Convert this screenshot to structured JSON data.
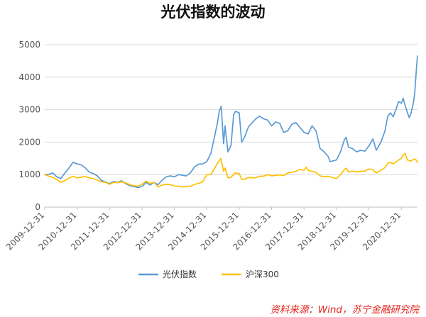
{
  "chart_data": {
    "type": "line",
    "title": "光伏指数的波动",
    "ylim": [
      0,
      5000
    ],
    "yticks": [
      0,
      1000,
      2000,
      3000,
      4000,
      5000
    ],
    "xlim": [
      "2009-12-31",
      "2021-07-01"
    ],
    "xticks": [
      "2009-12-31",
      "2010-12-31",
      "2011-12-31",
      "2012-12-31",
      "2013-12-31",
      "2014-12-31",
      "2015-12-31",
      "2016-12-31",
      "2017-12-31",
      "2018-12-31",
      "2019-12-31",
      "2020-12-31"
    ],
    "grid": "horizontal",
    "legend": "bottom",
    "series": [
      {
        "name": "光伏指数",
        "color": "#5b9bd5",
        "points": [
          [
            "2009-12-31",
            1000
          ],
          [
            "2010-02-15",
            1010
          ],
          [
            "2010-03-31",
            1050
          ],
          [
            "2010-05-15",
            930
          ],
          [
            "2010-06-30",
            880
          ],
          [
            "2010-08-15",
            1050
          ],
          [
            "2010-09-30",
            1200
          ],
          [
            "2010-11-15",
            1380
          ],
          [
            "2010-12-31",
            1330
          ],
          [
            "2011-02-15",
            1300
          ],
          [
            "2011-03-31",
            1210
          ],
          [
            "2011-05-15",
            1080
          ],
          [
            "2011-06-30",
            1030
          ],
          [
            "2011-08-15",
            960
          ],
          [
            "2011-09-30",
            820
          ],
          [
            "2011-11-15",
            770
          ],
          [
            "2011-12-31",
            720
          ],
          [
            "2012-02-15",
            790
          ],
          [
            "2012-03-31",
            760
          ],
          [
            "2012-05-15",
            810
          ],
          [
            "2012-06-30",
            720
          ],
          [
            "2012-08-15",
            660
          ],
          [
            "2012-09-30",
            630
          ],
          [
            "2012-11-15",
            600
          ],
          [
            "2012-12-31",
            630
          ],
          [
            "2013-02-15",
            760
          ],
          [
            "2013-03-31",
            680
          ],
          [
            "2013-05-15",
            760
          ],
          [
            "2013-06-30",
            690
          ],
          [
            "2013-08-15",
            830
          ],
          [
            "2013-09-30",
            930
          ],
          [
            "2013-11-15",
            960
          ],
          [
            "2013-12-31",
            930
          ],
          [
            "2014-02-15",
            1000
          ],
          [
            "2014-03-31",
            980
          ],
          [
            "2014-05-15",
            960
          ],
          [
            "2014-06-30",
            1060
          ],
          [
            "2014-08-15",
            1240
          ],
          [
            "2014-09-30",
            1320
          ],
          [
            "2014-11-15",
            1330
          ],
          [
            "2014-12-31",
            1400
          ],
          [
            "2015-02-15",
            1650
          ],
          [
            "2015-03-31",
            2200
          ],
          [
            "2015-04-30",
            2600
          ],
          [
            "2015-05-20",
            2950
          ],
          [
            "2015-06-12",
            3100
          ],
          [
            "2015-07-08",
            1950
          ],
          [
            "2015-07-25",
            2500
          ],
          [
            "2015-08-26",
            1700
          ],
          [
            "2015-09-30",
            1900
          ],
          [
            "2015-10-30",
            2850
          ],
          [
            "2015-11-20",
            2950
          ],
          [
            "2015-12-31",
            2900
          ],
          [
            "2016-01-28",
            2000
          ],
          [
            "2016-02-29",
            2150
          ],
          [
            "2016-04-15",
            2480
          ],
          [
            "2016-06-30",
            2700
          ],
          [
            "2016-08-15",
            2800
          ],
          [
            "2016-09-30",
            2720
          ],
          [
            "2016-11-15",
            2680
          ],
          [
            "2016-12-31",
            2500
          ],
          [
            "2017-02-15",
            2620
          ],
          [
            "2017-03-31",
            2580
          ],
          [
            "2017-05-15",
            2300
          ],
          [
            "2017-06-30",
            2350
          ],
          [
            "2017-08-15",
            2550
          ],
          [
            "2017-09-30",
            2600
          ],
          [
            "2017-11-15",
            2450
          ],
          [
            "2017-12-31",
            2300
          ],
          [
            "2018-02-15",
            2250
          ],
          [
            "2018-03-31",
            2500
          ],
          [
            "2018-05-15",
            2350
          ],
          [
            "2018-06-30",
            1800
          ],
          [
            "2018-08-15",
            1700
          ],
          [
            "2018-09-30",
            1550
          ],
          [
            "2018-10-20",
            1400
          ],
          [
            "2018-12-31",
            1450
          ],
          [
            "2019-02-15",
            1700
          ],
          [
            "2019-03-31",
            2080
          ],
          [
            "2019-04-20",
            2150
          ],
          [
            "2019-05-15",
            1850
          ],
          [
            "2019-06-30",
            1800
          ],
          [
            "2019-08-15",
            1700
          ],
          [
            "2019-09-30",
            1750
          ],
          [
            "2019-11-15",
            1720
          ],
          [
            "2019-12-31",
            1880
          ],
          [
            "2020-02-15",
            2100
          ],
          [
            "2020-03-23",
            1750
          ],
          [
            "2020-05-15",
            2000
          ],
          [
            "2020-06-30",
            2350
          ],
          [
            "2020-07-31",
            2800
          ],
          [
            "2020-08-31",
            2900
          ],
          [
            "2020-09-30",
            2780
          ],
          [
            "2020-10-31",
            3000
          ],
          [
            "2020-11-30",
            3250
          ],
          [
            "2020-12-31",
            3200
          ],
          [
            "2021-01-20",
            3350
          ],
          [
            "2021-02-15",
            3100
          ],
          [
            "2021-03-10",
            2900
          ],
          [
            "2021-03-31",
            2750
          ],
          [
            "2021-04-20",
            2900
          ],
          [
            "2021-05-15",
            3200
          ],
          [
            "2021-05-31",
            3500
          ],
          [
            "2021-06-15",
            4100
          ],
          [
            "2021-06-30",
            4650
          ]
        ]
      },
      {
        "name": "沪深300",
        "color": "#ffc000",
        "points": [
          [
            "2009-12-31",
            1000
          ],
          [
            "2010-02-15",
            950
          ],
          [
            "2010-03-31",
            920
          ],
          [
            "2010-05-15",
            850
          ],
          [
            "2010-06-30",
            760
          ],
          [
            "2010-08-15",
            820
          ],
          [
            "2010-09-30",
            890
          ],
          [
            "2010-11-15",
            950
          ],
          [
            "2010-12-31",
            900
          ],
          [
            "2011-02-15",
            920
          ],
          [
            "2011-03-31",
            940
          ],
          [
            "2011-05-15",
            900
          ],
          [
            "2011-06-30",
            880
          ],
          [
            "2011-08-15",
            830
          ],
          [
            "2011-09-30",
            780
          ],
          [
            "2011-11-15",
            760
          ],
          [
            "2011-12-31",
            700
          ],
          [
            "2012-02-15",
            760
          ],
          [
            "2012-03-31",
            750
          ],
          [
            "2012-05-15",
            780
          ],
          [
            "2012-06-30",
            740
          ],
          [
            "2012-08-15",
            690
          ],
          [
            "2012-09-30",
            660
          ],
          [
            "2012-11-15",
            640
          ],
          [
            "2012-12-31",
            700
          ],
          [
            "2013-02-15",
            800
          ],
          [
            "2013-03-31",
            730
          ],
          [
            "2013-05-15",
            760
          ],
          [
            "2013-06-30",
            620
          ],
          [
            "2013-08-15",
            680
          ],
          [
            "2013-09-30",
            700
          ],
          [
            "2013-11-15",
            690
          ],
          [
            "2013-12-31",
            650
          ],
          [
            "2014-02-15",
            640
          ],
          [
            "2014-03-31",
            620
          ],
          [
            "2014-05-15",
            630
          ],
          [
            "2014-06-30",
            640
          ],
          [
            "2014-08-15",
            700
          ],
          [
            "2014-09-30",
            730
          ],
          [
            "2014-11-15",
            780
          ],
          [
            "2014-12-31",
            1000
          ],
          [
            "2015-02-15",
            1000
          ],
          [
            "2015-03-31",
            1200
          ],
          [
            "2015-04-30",
            1350
          ],
          [
            "2015-06-08",
            1500
          ],
          [
            "2015-07-08",
            1100
          ],
          [
            "2015-07-25",
            1200
          ],
          [
            "2015-08-26",
            900
          ],
          [
            "2015-09-30",
            920
          ],
          [
            "2015-11-15",
            1050
          ],
          [
            "2015-12-31",
            1030
          ],
          [
            "2016-01-28",
            850
          ],
          [
            "2016-02-29",
            860
          ],
          [
            "2016-04-15",
            910
          ],
          [
            "2016-06-30",
            900
          ],
          [
            "2016-08-15",
            950
          ],
          [
            "2016-09-30",
            950
          ],
          [
            "2016-11-15",
            1000
          ],
          [
            "2016-12-31",
            960
          ],
          [
            "2017-02-15",
            980
          ],
          [
            "2017-03-31",
            990
          ],
          [
            "2017-05-15",
            970
          ],
          [
            "2017-06-30",
            1050
          ],
          [
            "2017-08-15",
            1070
          ],
          [
            "2017-09-30",
            1100
          ],
          [
            "2017-11-15",
            1160
          ],
          [
            "2017-12-31",
            1130
          ],
          [
            "2018-01-24",
            1230
          ],
          [
            "2018-02-15",
            1130
          ],
          [
            "2018-03-31",
            1100
          ],
          [
            "2018-05-15",
            1070
          ],
          [
            "2018-06-30",
            960
          ],
          [
            "2018-08-15",
            930
          ],
          [
            "2018-09-30",
            950
          ],
          [
            "2018-11-15",
            910
          ],
          [
            "2018-12-31",
            880
          ],
          [
            "2019-02-15",
            1000
          ],
          [
            "2019-03-31",
            1150
          ],
          [
            "2019-04-20",
            1200
          ],
          [
            "2019-05-15",
            1080
          ],
          [
            "2019-06-30",
            1110
          ],
          [
            "2019-08-15",
            1080
          ],
          [
            "2019-09-30",
            1100
          ],
          [
            "2019-11-15",
            1110
          ],
          [
            "2019-12-31",
            1170
          ],
          [
            "2020-02-15",
            1150
          ],
          [
            "2020-03-23",
            1050
          ],
          [
            "2020-05-15",
            1130
          ],
          [
            "2020-06-30",
            1220
          ],
          [
            "2020-07-31",
            1350
          ],
          [
            "2020-08-31",
            1380
          ],
          [
            "2020-09-30",
            1330
          ],
          [
            "2020-10-31",
            1390
          ],
          [
            "2020-11-30",
            1450
          ],
          [
            "2020-12-31",
            1500
          ],
          [
            "2021-01-20",
            1600
          ],
          [
            "2021-02-10",
            1650
          ],
          [
            "2021-03-10",
            1450
          ],
          [
            "2021-03-31",
            1430
          ],
          [
            "2021-04-20",
            1420
          ],
          [
            "2021-05-15",
            1470
          ],
          [
            "2021-05-31",
            1480
          ],
          [
            "2021-06-15",
            1450
          ],
          [
            "2021-06-30",
            1380
          ]
        ]
      }
    ],
    "source": "资料来源：Wind，苏宁金融研究院"
  }
}
